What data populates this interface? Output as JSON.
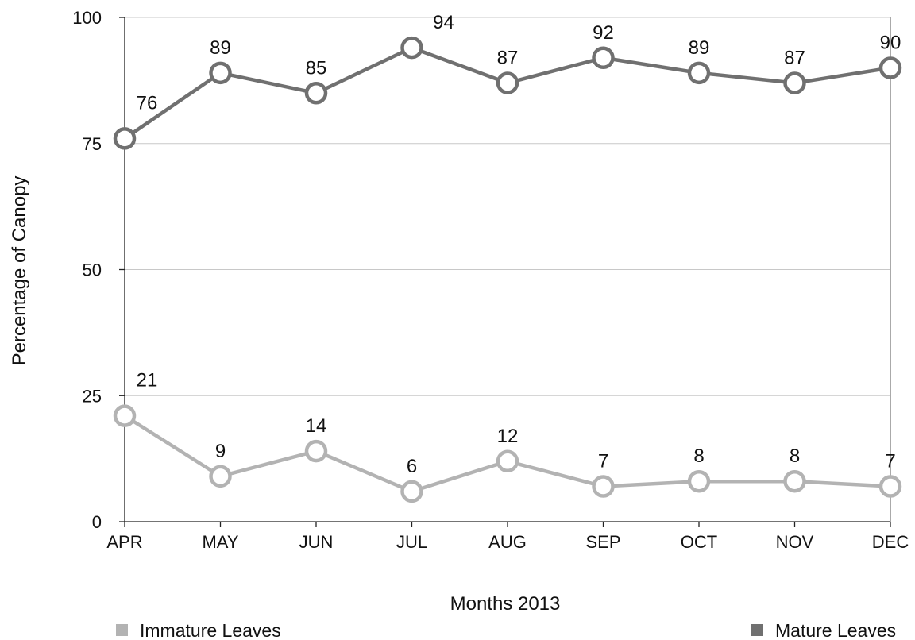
{
  "chart_data": {
    "type": "line",
    "categories": [
      "APR",
      "MAY",
      "JUN",
      "JUL",
      "AUG",
      "SEP",
      "OCT",
      "NOV",
      "DEC"
    ],
    "series": [
      {
        "name": "Immature Leaves",
        "color": "#b3b3b3",
        "values": [
          21,
          9,
          14,
          6,
          12,
          7,
          8,
          8,
          7
        ]
      },
      {
        "name": "Mature Leaves",
        "color": "#707070",
        "values": [
          76,
          89,
          85,
          94,
          87,
          92,
          89,
          87,
          90
        ]
      }
    ],
    "xlabel": "Months 2013",
    "ylabel": "Percentage of Canopy",
    "ylim": [
      0,
      100
    ],
    "yticks": [
      0,
      25,
      50,
      75,
      100
    ],
    "grid": true,
    "legend": "bottom"
  }
}
